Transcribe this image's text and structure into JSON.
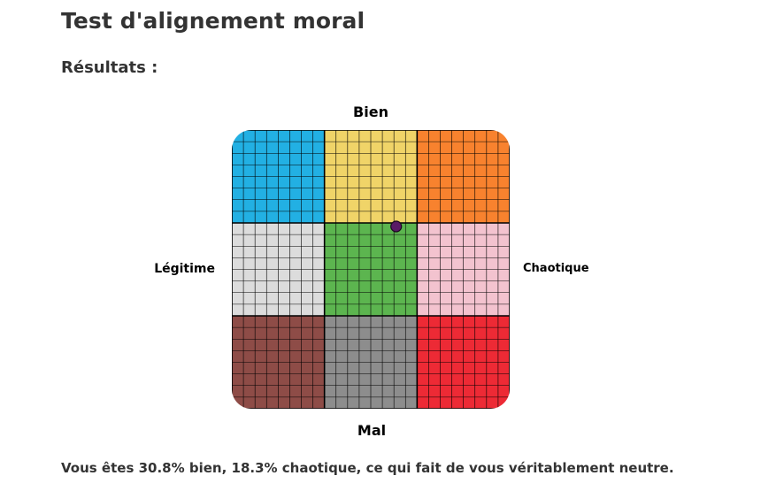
{
  "page": {
    "title": "Test d'alignement moral",
    "results_heading": "Résultats :",
    "result_sentence": "Vous êtes 30.8% bien, 18.3% chaotique, ce qui fait de vous véritablement neutre."
  },
  "chart_data": {
    "type": "scatter",
    "title": "",
    "axis_labels": {
      "top": "Bien",
      "bottom": "Mal",
      "left": "Légitime",
      "right": "Chaotique"
    },
    "x_range": [
      -100,
      100
    ],
    "y_range": [
      -100,
      100
    ],
    "grid": true,
    "grid_divisions": 24,
    "regions": [
      {
        "row": 0,
        "col": 0,
        "color": "#22b0e3"
      },
      {
        "row": 0,
        "col": 1,
        "color": "#f0d468"
      },
      {
        "row": 0,
        "col": 2,
        "color": "#f8822e"
      },
      {
        "row": 1,
        "col": 0,
        "color": "#dcdcdc"
      },
      {
        "row": 1,
        "col": 1,
        "color": "#5cb54f"
      },
      {
        "row": 1,
        "col": 2,
        "color": "#f3c3cf"
      },
      {
        "row": 2,
        "col": 0,
        "color": "#8e4c47"
      },
      {
        "row": 2,
        "col": 1,
        "color": "#8d8d8d"
      },
      {
        "row": 2,
        "col": 2,
        "color": "#ed2a35"
      }
    ],
    "points": [
      {
        "x": 18.3,
        "y": 30.8,
        "color": "#5a1a66"
      }
    ]
  }
}
